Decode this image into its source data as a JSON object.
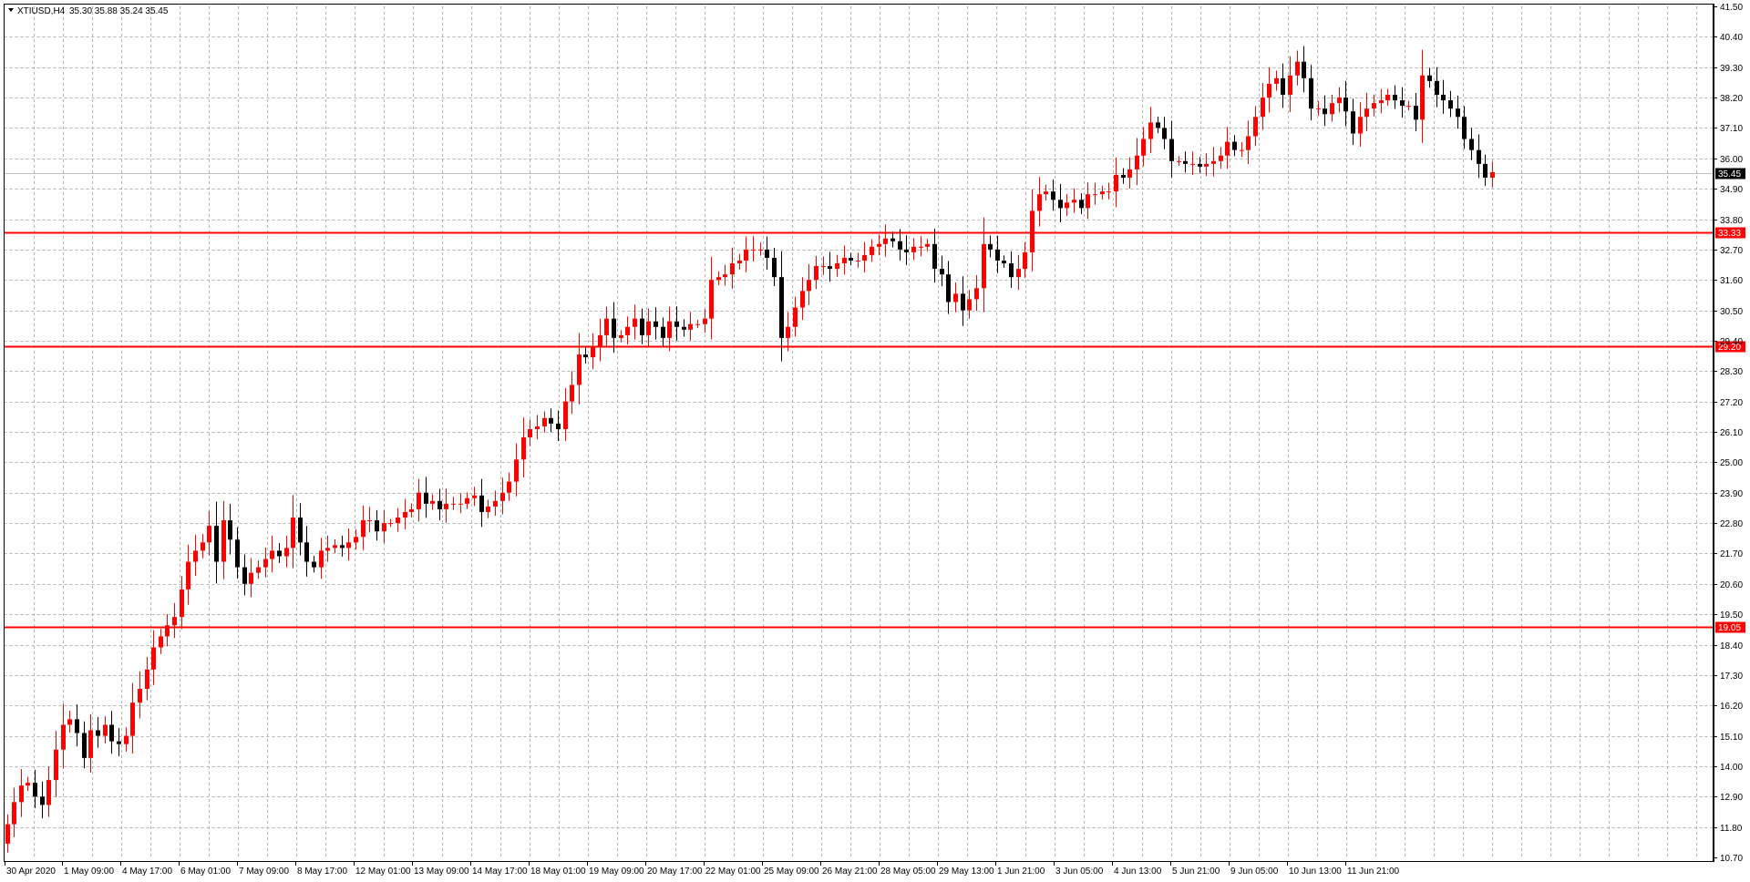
{
  "header": {
    "symbol": "XTIUSD,H4",
    "ohlc": "35.30 35.88 35.24 35.45",
    "menu_icon": "triangle-down-icon"
  },
  "colors": {
    "bull": "#ff0000",
    "bear": "#000000",
    "grid": "#b4b4b4",
    "level_line": "#ff0000",
    "bid_line": "#c0c0c0"
  },
  "chart_data": {
    "type": "candlestick",
    "title": "",
    "xlabel": "",
    "ylabel": "",
    "ylim": [
      10.7,
      41.5
    ],
    "grid": true,
    "y_ticks": [
      "41.50",
      "40.40",
      "39.30",
      "38.20",
      "37.10",
      "36.00",
      "34.90",
      "33.80",
      "32.70",
      "31.60",
      "30.50",
      "29.40",
      "28.30",
      "27.20",
      "26.10",
      "25.00",
      "23.90",
      "22.80",
      "21.70",
      "20.60",
      "19.50",
      "18.40",
      "17.30",
      "16.20",
      "15.10",
      "14.00",
      "12.90",
      "11.80",
      "10.70"
    ],
    "x_ticks": [
      "30 Apr 2020",
      "1 May 09:00",
      "4 May 17:00",
      "6 May 01:00",
      "7 May 09:00",
      "8 May 17:00",
      "12 May 01:00",
      "13 May 09:00",
      "14 May 17:00",
      "18 May 01:00",
      "19 May 09:00",
      "20 May 17:00",
      "22 May 01:00",
      "25 May 09:00",
      "26 May 21:00",
      "28 May 05:00",
      "29 May 13:00",
      "1 Jun 21:00",
      "3 Jun 05:00",
      "4 Jun 13:00",
      "5 Jun 21:00",
      "9 Jun 05:00",
      "10 Jun 13:00",
      "11 Jun 21:00"
    ],
    "current_price": 35.45,
    "levels": [
      33.33,
      29.2,
      19.05
    ],
    "close": [
      11.9,
      12.7,
      13.3,
      13.4,
      12.9,
      12.6,
      13.5,
      14.6,
      15.5,
      15.7,
      15.2,
      14.3,
      15.3,
      15.1,
      15.5,
      14.9,
      14.8,
      15.1,
      16.3,
      16.8,
      17.5,
      18.3,
      18.7,
      19.1,
      19.4,
      20.4,
      21.4,
      21.8,
      22.1,
      22.7,
      21.4,
      22.9,
      22.2,
      21.2,
      20.6,
      21.0,
      21.2,
      21.5,
      21.8,
      21.6,
      21.9,
      23.0,
      22.1,
      21.4,
      21.2,
      21.8,
      21.9,
      22.0,
      21.9,
      22.1,
      22.3,
      22.9,
      22.9,
      22.5,
      22.8,
      22.8,
      23.0,
      23.2,
      23.3,
      23.9,
      23.5,
      23.6,
      23.3,
      23.5,
      23.5,
      23.5,
      23.7,
      23.8,
      23.2,
      23.4,
      23.6,
      23.9,
      24.3,
      25.1,
      25.9,
      26.2,
      26.3,
      26.6,
      26.4,
      26.2,
      27.2,
      27.8,
      28.9,
      28.8,
      29.2,
      29.6,
      30.2,
      29.5,
      29.6,
      29.9,
      30.2,
      29.6,
      30.1,
      29.9,
      29.5,
      30.1,
      29.9,
      29.8,
      30.0,
      30.0,
      30.2,
      31.6,
      31.7,
      31.8,
      32.2,
      32.3,
      32.7,
      32.7,
      32.7,
      32.4,
      31.7,
      29.5,
      29.9,
      30.6,
      31.2,
      31.6,
      32.1,
      32.1,
      32.0,
      32.2,
      32.4,
      32.3,
      32.3,
      32.5,
      32.8,
      32.9,
      33.1,
      33.0,
      32.7,
      32.6,
      32.8,
      32.8,
      32.9,
      32.0,
      31.8,
      30.8,
      31.1,
      30.5,
      30.9,
      31.3,
      32.9,
      32.7,
      32.3,
      32.2,
      31.7,
      32.0,
      32.6,
      34.1,
      34.7,
      34.8,
      34.5,
      34.2,
      34.4,
      34.5,
      34.2,
      34.7,
      34.7,
      34.8,
      34.8,
      35.4,
      35.3,
      35.6,
      36.1,
      36.7,
      37.3,
      37.1,
      36.7,
      35.9,
      35.9,
      35.8,
      35.8,
      35.7,
      35.8,
      35.9,
      36.1,
      36.6,
      36.3,
      36.3,
      36.8,
      37.5,
      38.2,
      38.7,
      38.9,
      38.3,
      39.0,
      39.5,
      38.9,
      37.8,
      37.8,
      37.6,
      38.0,
      38.2,
      37.7,
      36.9,
      37.5,
      37.8,
      38.0,
      38.1,
      38.3,
      38.1,
      37.9,
      37.9,
      37.4,
      39.0,
      38.8,
      38.3,
      38.1,
      37.8,
      37.5,
      36.7,
      36.3,
      35.8,
      35.3,
      35.5
    ]
  }
}
